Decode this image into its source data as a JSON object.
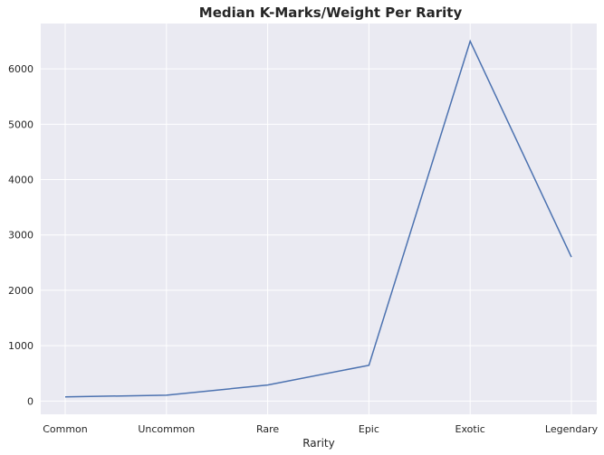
{
  "chart_data": {
    "type": "line",
    "title": "Median K-Marks/Weight Per Rarity",
    "xlabel": "Rarity",
    "ylabel": "",
    "categories": [
      "Common",
      "Uncommon",
      "Rare",
      "Epic",
      "Exotic",
      "Legendary"
    ],
    "series": [
      {
        "values": [
          75,
          105,
          290,
          645,
          6500,
          2600
        ]
      }
    ],
    "ylim": [
      -240,
      6820
    ],
    "yticks": [
      0,
      1000,
      2000,
      3000,
      4000,
      5000,
      6000
    ],
    "grid": true,
    "colors": {
      "line": "#4c72b0",
      "plot_background": "#eaeaf2",
      "grid": "#ffffff"
    }
  }
}
